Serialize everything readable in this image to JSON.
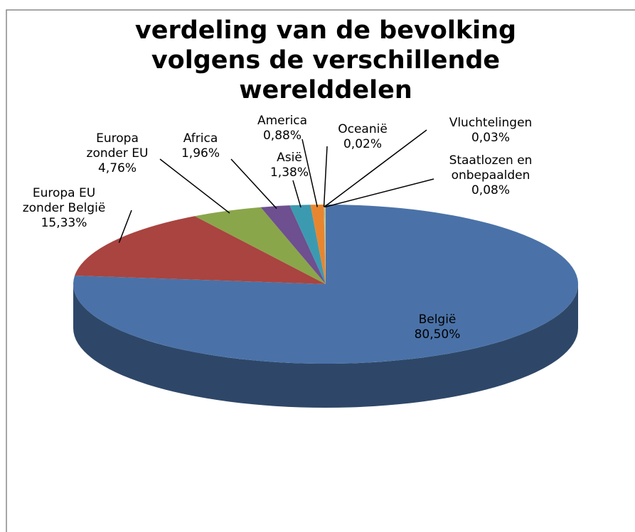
{
  "chart_data": {
    "type": "pie3d",
    "title": "verdeling van de bevolking volgens de verschillende werelddelen",
    "categories": [
      "België",
      "Europa EU zonder België",
      "Europa zonder EU",
      "Africa",
      "Asië",
      "America",
      "Oceanië",
      "Vluchtelingen",
      "Staatlozen en onbepaalden"
    ],
    "values": [
      80.5,
      15.33,
      4.76,
      1.96,
      1.38,
      0.88,
      0.02,
      0.03,
      0.08
    ],
    "value_labels": [
      "80,50%",
      "15,33%",
      "4,76%",
      "1,96%",
      "1,38%",
      "0,88%",
      "0,02%",
      "0,03%",
      "0,08%"
    ],
    "colors": [
      "#4a72a8",
      "#a94440",
      "#8aa64a",
      "#6e4f8f",
      "#3c9ab0",
      "#e8862f",
      "#93a9cf",
      "#d09390",
      "#b7cc8c"
    ]
  }
}
